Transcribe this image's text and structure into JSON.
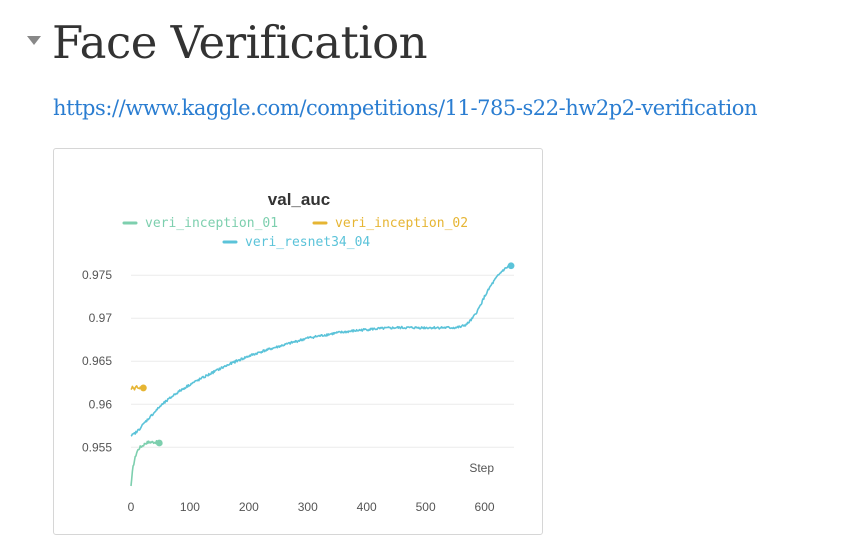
{
  "section": {
    "title": "Face Verification",
    "link_text": "https://www.kaggle.com/competitions/11-785-s22-hw2p2-verification"
  },
  "chart_data": {
    "type": "line",
    "title": "val_auc",
    "xlabel": "Step",
    "ylabel": "",
    "xlim": [
      0,
      650
    ],
    "ylim": [
      0.9505,
      0.977
    ],
    "x_ticks": [
      0,
      100,
      200,
      300,
      400,
      500,
      600
    ],
    "y_ticks": [
      0.955,
      0.96,
      0.965,
      0.97,
      0.975
    ],
    "x_tick_labels": [
      "0",
      "100",
      "200",
      "300",
      "400",
      "500",
      "600"
    ],
    "y_tick_labels": [
      "0.955",
      "0.96",
      "0.965",
      "0.97",
      "0.975"
    ],
    "grid": "horizontal",
    "legend_position": "top-center",
    "series": [
      {
        "name": "veri_inception_01",
        "color": "#7dcfae",
        "x": [
          0,
          3,
          6,
          10,
          15,
          20,
          25,
          30,
          35,
          40,
          45,
          48
        ],
        "y": [
          0.9505,
          0.9525,
          0.9535,
          0.9545,
          0.955,
          0.9552,
          0.9555,
          0.9556,
          0.9556,
          0.9556,
          0.9556,
          0.9555
        ],
        "end_marker": true
      },
      {
        "name": "veri_inception_02",
        "color": "#e6b533",
        "x": [
          0,
          3,
          6,
          9,
          12,
          15,
          18,
          21
        ],
        "y": [
          0.9617,
          0.962,
          0.9618,
          0.9621,
          0.9618,
          0.962,
          0.9619,
          0.9619
        ],
        "end_marker": true
      },
      {
        "name": "veri_resnet34_04",
        "color": "#5bc3d9",
        "x": [
          0,
          10,
          25,
          50,
          75,
          100,
          125,
          150,
          175,
          200,
          225,
          250,
          275,
          300,
          325,
          350,
          375,
          400,
          425,
          450,
          475,
          500,
          525,
          550,
          560,
          570,
          580,
          590,
          600,
          610,
          620,
          630,
          640,
          645
        ],
        "y": [
          0.9563,
          0.9568,
          0.958,
          0.9598,
          0.9612,
          0.9623,
          0.9632,
          0.9641,
          0.9649,
          0.9656,
          0.9662,
          0.9667,
          0.9672,
          0.9677,
          0.968,
          0.9683,
          0.9685,
          0.9687,
          0.9688,
          0.9689,
          0.9689,
          0.9689,
          0.9689,
          0.9689,
          0.969,
          0.9693,
          0.97,
          0.9711,
          0.9725,
          0.9737,
          0.9747,
          0.9755,
          0.976,
          0.9761
        ],
        "end_marker": true
      }
    ]
  }
}
